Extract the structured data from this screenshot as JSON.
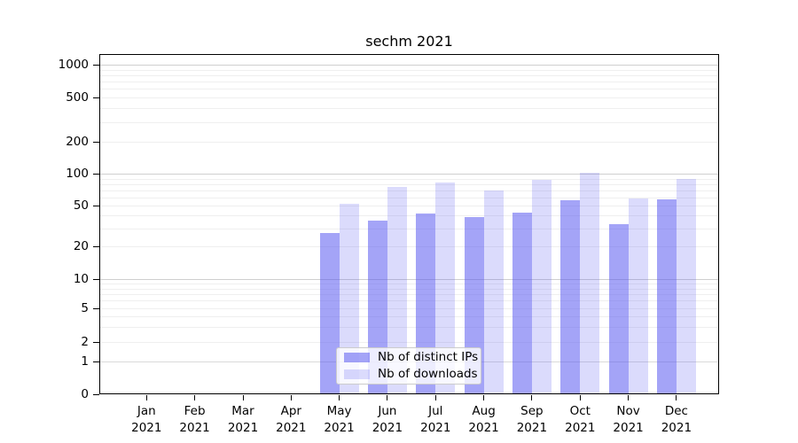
{
  "chart_data": {
    "type": "bar",
    "title": "sechm 2021",
    "categories": [
      "Jan 2021",
      "Feb 2021",
      "Mar 2021",
      "Apr 2021",
      "May 2021",
      "Jun 2021",
      "Jul 2021",
      "Aug 2021",
      "Sep 2021",
      "Oct 2021",
      "Nov 2021",
      "Dec 2021"
    ],
    "series": [
      {
        "name": "Nb of distinct IPs",
        "values": [
          0,
          0,
          0,
          0,
          27,
          36,
          42,
          39,
          43,
          56,
          33,
          57
        ]
      },
      {
        "name": "Nb of downloads",
        "values": [
          0,
          0,
          0,
          0,
          52,
          75,
          82,
          69,
          88,
          102,
          58,
          90
        ]
      }
    ],
    "yscale": "symlog",
    "ylim": [
      0,
      1000
    ],
    "yticks": [
      0,
      1,
      2,
      5,
      10,
      20,
      50,
      100,
      200,
      500,
      1000
    ],
    "xlabel": "",
    "ylabel": "",
    "grid": true,
    "legend_position": "lower center"
  },
  "colors": {
    "bar_ips_fill": "rgba(90,90,240,0.55)",
    "bar_downloads_fill": "rgba(90,90,240,0.22)",
    "grid_major": "#cfcfcf",
    "grid_unit": "#dadada",
    "grid_minor": "#efefef",
    "axis": "#000000",
    "legend_border": "#cccccc"
  }
}
